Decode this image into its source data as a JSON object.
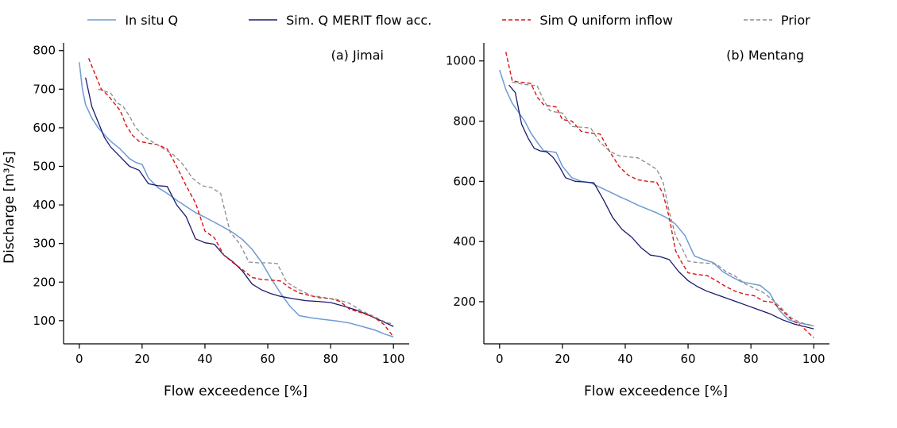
{
  "legend": {
    "items": [
      {
        "label": "In situ Q",
        "color": "#6d9bd3",
        "dash": "solid"
      },
      {
        "label": "Sim. Q MERIT flow acc.",
        "color": "#191970",
        "dash": "solid"
      },
      {
        "label": "Sim Q uniform inflow",
        "color": "#dd1111",
        "dash": "dashed"
      },
      {
        "label": "Prior",
        "color": "#8a8a8a",
        "dash": "dashed"
      }
    ]
  },
  "chart_data": [
    {
      "type": "line",
      "panel_label": "(a) Jimai",
      "xlabel": "Flow exceedence [%]",
      "ylabel": "Discharge [m³/s]",
      "xlim": [
        -5,
        105
      ],
      "ylim": [
        40,
        820
      ],
      "xticks": [
        0,
        20,
        40,
        60,
        80,
        100
      ],
      "yticks": [
        100,
        200,
        300,
        400,
        500,
        600,
        700,
        800
      ],
      "grid": false,
      "legend_position": "top-outside",
      "series": [
        {
          "name": "In situ Q",
          "color": "#6d9bd3",
          "dash": "solid",
          "width": 1.5,
          "x": [
            0,
            1,
            2,
            4,
            6,
            8,
            10,
            13,
            16,
            18,
            20,
            22,
            25,
            28,
            31,
            34,
            37,
            40,
            43,
            46,
            49,
            52,
            55,
            58,
            61,
            64,
            67,
            70,
            74,
            78,
            82,
            86,
            90,
            94,
            97,
            100
          ],
          "y": [
            770,
            700,
            660,
            625,
            600,
            582,
            565,
            545,
            520,
            510,
            505,
            470,
            445,
            430,
            412,
            396,
            380,
            368,
            355,
            342,
            328,
            310,
            285,
            252,
            210,
            172,
            138,
            113,
            107,
            103,
            99,
            94,
            85,
            76,
            66,
            58
          ]
        },
        {
          "name": "Sim. Q MERIT flow acc.",
          "color": "#191970",
          "dash": "solid",
          "width": 1.3,
          "x": [
            2,
            4,
            6,
            8,
            10,
            13,
            16,
            19,
            22,
            25,
            28,
            31,
            34,
            37,
            40,
            43,
            46,
            49,
            52,
            55,
            58,
            61,
            64,
            68,
            72,
            76,
            80,
            84,
            88,
            92,
            96,
            100
          ],
          "y": [
            730,
            655,
            615,
            575,
            550,
            525,
            500,
            490,
            455,
            450,
            448,
            400,
            370,
            312,
            302,
            298,
            270,
            252,
            228,
            195,
            180,
            170,
            163,
            157,
            152,
            150,
            147,
            138,
            128,
            115,
            100,
            85
          ]
        },
        {
          "name": "Sim Q uniform inflow",
          "color": "#dd1111",
          "dash": "dashed",
          "width": 1.4,
          "x": [
            3,
            5,
            7,
            9,
            11,
            13,
            15,
            17,
            19,
            22,
            25,
            28,
            31,
            34,
            37,
            40,
            43,
            46,
            49,
            52,
            55,
            58,
            61,
            64,
            67,
            70,
            73,
            76,
            80,
            83,
            86,
            90,
            94,
            97,
            100
          ],
          "y": [
            780,
            740,
            700,
            685,
            665,
            645,
            605,
            580,
            565,
            560,
            556,
            545,
            500,
            450,
            405,
            332,
            315,
            270,
            250,
            232,
            212,
            207,
            205,
            203,
            185,
            172,
            166,
            160,
            157,
            150,
            130,
            120,
            108,
            90,
            58
          ]
        },
        {
          "name": "Prior",
          "color": "#8a8a8a",
          "dash": "dashed",
          "width": 1.3,
          "x": [
            6,
            8,
            10,
            12,
            14,
            16,
            18,
            21,
            24,
            27,
            30,
            33,
            36,
            39,
            42,
            45,
            48,
            51,
            54,
            57,
            60,
            63,
            66,
            70,
            74,
            78,
            82,
            86,
            90,
            94,
            97,
            100
          ],
          "y": [
            700,
            695,
            690,
            665,
            655,
            630,
            600,
            575,
            560,
            545,
            530,
            505,
            470,
            450,
            445,
            430,
            330,
            300,
            252,
            250,
            250,
            248,
            200,
            180,
            165,
            160,
            155,
            145,
            125,
            110,
            98,
            90
          ]
        }
      ]
    },
    {
      "type": "line",
      "panel_label": "(b) Mentang",
      "xlabel": "Flow exceedence [%]",
      "xlim": [
        -5,
        105
      ],
      "ylim": [
        60,
        1060
      ],
      "xticks": [
        0,
        20,
        40,
        60,
        80,
        100
      ],
      "yticks": [
        200,
        400,
        600,
        800,
        1000
      ],
      "grid": false,
      "legend_position": "top-outside",
      "series": [
        {
          "name": "In situ Q",
          "color": "#6d9bd3",
          "dash": "solid",
          "width": 1.5,
          "x": [
            0,
            2,
            4,
            6,
            8,
            10,
            12,
            14,
            16,
            18,
            20,
            23,
            26,
            29,
            32,
            35,
            38,
            41,
            44,
            47,
            50,
            53,
            56,
            59,
            62,
            65,
            68,
            71,
            74,
            77,
            80,
            83,
            86,
            89,
            92,
            95,
            100
          ],
          "y": [
            970,
            905,
            860,
            830,
            800,
            760,
            730,
            702,
            699,
            696,
            650,
            612,
            600,
            595,
            580,
            565,
            550,
            536,
            521,
            508,
            495,
            480,
            458,
            420,
            352,
            340,
            330,
            300,
            282,
            266,
            260,
            254,
            228,
            172,
            140,
            130,
            120
          ]
        },
        {
          "name": "Sim. Q MERIT flow acc.",
          "color": "#191970",
          "dash": "solid",
          "width": 1.3,
          "x": [
            3,
            5,
            7,
            9,
            11,
            13,
            15,
            17,
            19,
            21,
            24,
            27,
            30,
            33,
            36,
            39,
            42,
            45,
            48,
            51,
            54,
            57,
            60,
            63,
            66,
            70,
            74,
            78,
            82,
            86,
            90,
            94,
            100
          ],
          "y": [
            920,
            895,
            790,
            745,
            710,
            701,
            698,
            680,
            650,
            612,
            600,
            598,
            595,
            540,
            480,
            440,
            415,
            380,
            355,
            350,
            340,
            300,
            270,
            250,
            235,
            220,
            205,
            190,
            175,
            160,
            140,
            125,
            110
          ]
        },
        {
          "name": "Sim Q uniform inflow",
          "color": "#dd1111",
          "dash": "dashed",
          "width": 1.4,
          "x": [
            2,
            4,
            6,
            8,
            10,
            12,
            14,
            16,
            18,
            20,
            23,
            26,
            29,
            32,
            35,
            38,
            41,
            44,
            47,
            50,
            52,
            54,
            56,
            58,
            60,
            63,
            66,
            69,
            72,
            75,
            78,
            81,
            84,
            87,
            90,
            93,
            96,
            100
          ],
          "y": [
            1030,
            935,
            930,
            928,
            925,
            880,
            855,
            850,
            847,
            805,
            800,
            766,
            760,
            757,
            700,
            650,
            620,
            605,
            600,
            597,
            560,
            480,
            370,
            330,
            296,
            290,
            287,
            270,
            250,
            235,
            225,
            220,
            202,
            198,
            170,
            140,
            120,
            80
          ]
        },
        {
          "name": "Prior",
          "color": "#8a8a8a",
          "dash": "dashed",
          "width": 1.3,
          "x": [
            4,
            6,
            8,
            10,
            12,
            14,
            16,
            18,
            20,
            23,
            26,
            29,
            32,
            35,
            38,
            41,
            44,
            47,
            50,
            52,
            54,
            56,
            58,
            60,
            63,
            66,
            69,
            72,
            75,
            78,
            81,
            84,
            87,
            90,
            93,
            96,
            100
          ],
          "y": [
            930,
            925,
            922,
            920,
            917,
            870,
            835,
            830,
            827,
            782,
            780,
            777,
            730,
            700,
            685,
            681,
            678,
            660,
            640,
            600,
            500,
            420,
            380,
            335,
            330,
            328,
            325,
            300,
            285,
            260,
            245,
            230,
            205,
            175,
            145,
            130,
            120
          ]
        }
      ]
    }
  ]
}
